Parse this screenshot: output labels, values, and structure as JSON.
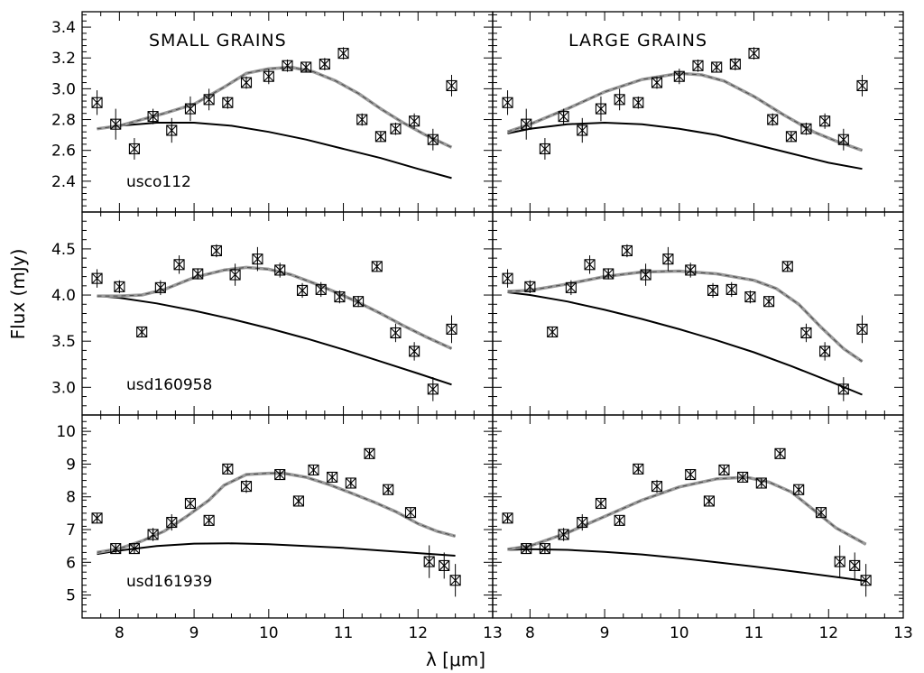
{
  "figure": {
    "ylabel": "Flux (mJy)",
    "xlabel": "λ [μm]",
    "column_titles": [
      "SMALL GRAINS",
      "LARGE GRAINS"
    ]
  },
  "chart_data": [
    {
      "type": "line",
      "panel": "small grains / usco112",
      "annotation": "SMALL GRAINS",
      "object": "usco112",
      "xlim": [
        7.5,
        13
      ],
      "ylim": [
        2.2,
        3.5
      ],
      "xticks": [
        8,
        9,
        10,
        11,
        12,
        13
      ],
      "yticks": [
        2.4,
        2.6,
        2.8,
        3.0,
        3.2,
        3.4
      ],
      "ytick_labels": [
        "2.4",
        "2.6",
        "2.8",
        "3.0",
        "3.2",
        "3.4"
      ],
      "points": {
        "x": [
          7.7,
          7.95,
          8.2,
          8.45,
          8.7,
          8.95,
          9.2,
          9.45,
          9.7,
          10.0,
          10.25,
          10.5,
          10.75,
          11.0,
          11.25,
          11.5,
          11.7,
          11.95,
          12.2,
          12.45
        ],
        "y": [
          2.91,
          2.77,
          2.61,
          2.82,
          2.73,
          2.87,
          2.93,
          2.91,
          3.04,
          3.08,
          3.15,
          3.14,
          3.16,
          3.23,
          2.8,
          2.69,
          2.74,
          2.79,
          2.67,
          3.02
        ],
        "yerr": [
          0.08,
          0.1,
          0.07,
          0.05,
          0.08,
          0.08,
          0.07,
          0.04,
          0.04,
          0.05,
          0.04,
          0.03,
          0.04,
          0.04,
          0.04,
          0.03,
          0.04,
          0.05,
          0.07,
          0.07
        ]
      },
      "series": [
        {
          "style": "continuum",
          "x": [
            7.7,
            8.0,
            8.5,
            9.0,
            9.5,
            10.0,
            10.5,
            11.0,
            11.5,
            12.0,
            12.45
          ],
          "y": [
            2.74,
            2.76,
            2.78,
            2.78,
            2.76,
            2.72,
            2.67,
            2.61,
            2.55,
            2.48,
            2.42
          ]
        },
        {
          "style": "model",
          "x": [
            7.7,
            8.0,
            8.3,
            8.6,
            9.0,
            9.4,
            9.7,
            10.0,
            10.3,
            10.6,
            10.9,
            11.2,
            11.5,
            11.8,
            12.1,
            12.45
          ],
          "y": [
            2.74,
            2.76,
            2.8,
            2.84,
            2.9,
            3.01,
            3.1,
            3.13,
            3.14,
            3.11,
            3.05,
            2.97,
            2.87,
            2.78,
            2.7,
            2.62
          ]
        }
      ]
    },
    {
      "type": "line",
      "panel": "large grains / usco112",
      "annotation": "LARGE GRAINS",
      "xlim": [
        7.5,
        13
      ],
      "ylim": [
        2.2,
        3.5
      ],
      "xticks": [
        8,
        9,
        10,
        11,
        12,
        13
      ],
      "yticks": [
        2.4,
        2.6,
        2.8,
        3.0,
        3.2,
        3.4
      ],
      "points": {
        "x": [
          7.7,
          7.95,
          8.2,
          8.45,
          8.7,
          8.95,
          9.2,
          9.45,
          9.7,
          10.0,
          10.25,
          10.5,
          10.75,
          11.0,
          11.25,
          11.5,
          11.7,
          11.95,
          12.2,
          12.45
        ],
        "y": [
          2.91,
          2.77,
          2.61,
          2.82,
          2.73,
          2.87,
          2.93,
          2.91,
          3.04,
          3.08,
          3.15,
          3.14,
          3.16,
          3.23,
          2.8,
          2.69,
          2.74,
          2.79,
          2.67,
          3.02
        ],
        "yerr": [
          0.08,
          0.1,
          0.07,
          0.05,
          0.08,
          0.08,
          0.07,
          0.04,
          0.04,
          0.05,
          0.04,
          0.03,
          0.04,
          0.04,
          0.04,
          0.03,
          0.04,
          0.05,
          0.07,
          0.07
        ]
      },
      "series": [
        {
          "style": "continuum",
          "x": [
            7.7,
            8.0,
            8.5,
            9.0,
            9.5,
            10.0,
            10.5,
            11.0,
            11.5,
            12.0,
            12.45
          ],
          "y": [
            2.71,
            2.74,
            2.77,
            2.78,
            2.77,
            2.74,
            2.7,
            2.64,
            2.58,
            2.52,
            2.48
          ]
        },
        {
          "style": "model",
          "x": [
            7.7,
            8.0,
            8.5,
            9.0,
            9.5,
            10.0,
            10.3,
            10.6,
            11.0,
            11.4,
            11.8,
            12.1,
            12.45
          ],
          "y": [
            2.72,
            2.77,
            2.87,
            2.98,
            3.06,
            3.1,
            3.09,
            3.05,
            2.95,
            2.83,
            2.72,
            2.66,
            2.6
          ]
        }
      ]
    },
    {
      "type": "line",
      "panel": "small grains / usd160958",
      "object": "usd160958",
      "xlim": [
        7.5,
        13
      ],
      "ylim": [
        2.7,
        4.9
      ],
      "xticks": [
        8,
        9,
        10,
        11,
        12,
        13
      ],
      "yticks": [
        3.0,
        3.5,
        4.0,
        4.5
      ],
      "ytick_labels": [
        "3.0",
        "3.5",
        "4.0",
        "4.5"
      ],
      "points": {
        "x": [
          7.7,
          8.0,
          8.3,
          8.55,
          8.8,
          9.05,
          9.3,
          9.55,
          9.85,
          10.15,
          10.45,
          10.7,
          10.95,
          11.2,
          11.45,
          11.7,
          11.95,
          12.2,
          12.45
        ],
        "y": [
          4.18,
          4.09,
          3.6,
          4.08,
          4.33,
          4.23,
          4.48,
          4.22,
          4.39,
          4.27,
          4.05,
          4.06,
          3.98,
          3.93,
          4.31,
          3.59,
          3.39,
          2.98,
          3.63
        ],
        "yerr": [
          0.1,
          0.07,
          0.05,
          0.08,
          0.1,
          0.06,
          0.07,
          0.12,
          0.13,
          0.08,
          0.08,
          0.08,
          0.07,
          0.06,
          0.05,
          0.1,
          0.1,
          0.13,
          0.15
        ]
      },
      "series": [
        {
          "style": "continuum",
          "x": [
            7.7,
            8.0,
            8.5,
            9.0,
            9.5,
            10.0,
            10.5,
            11.0,
            11.5,
            12.0,
            12.45
          ],
          "y": [
            3.99,
            3.97,
            3.91,
            3.83,
            3.74,
            3.64,
            3.53,
            3.41,
            3.28,
            3.15,
            3.03
          ]
        },
        {
          "style": "model",
          "x": [
            7.7,
            8.0,
            8.3,
            8.6,
            9.0,
            9.4,
            9.7,
            10.0,
            10.3,
            10.6,
            10.9,
            11.2,
            11.5,
            11.8,
            12.1,
            12.45
          ],
          "y": [
            3.99,
            3.99,
            4.0,
            4.06,
            4.19,
            4.27,
            4.3,
            4.28,
            4.22,
            4.13,
            4.03,
            3.92,
            3.8,
            3.67,
            3.55,
            3.42
          ]
        }
      ]
    },
    {
      "type": "line",
      "panel": "large grains / usd160958",
      "xlim": [
        7.5,
        13
      ],
      "ylim": [
        2.7,
        4.9
      ],
      "xticks": [
        8,
        9,
        10,
        11,
        12,
        13
      ],
      "yticks": [
        3.0,
        3.5,
        4.0,
        4.5
      ],
      "points": {
        "x": [
          7.7,
          8.0,
          8.3,
          8.55,
          8.8,
          9.05,
          9.3,
          9.55,
          9.85,
          10.15,
          10.45,
          10.7,
          10.95,
          11.2,
          11.45,
          11.7,
          11.95,
          12.2,
          12.45
        ],
        "y": [
          4.18,
          4.09,
          3.6,
          4.08,
          4.33,
          4.23,
          4.48,
          4.22,
          4.39,
          4.27,
          4.05,
          4.06,
          3.98,
          3.93,
          4.31,
          3.59,
          3.39,
          2.98,
          3.63
        ],
        "yerr": [
          0.1,
          0.07,
          0.05,
          0.08,
          0.1,
          0.06,
          0.07,
          0.12,
          0.13,
          0.08,
          0.08,
          0.08,
          0.07,
          0.06,
          0.05,
          0.1,
          0.1,
          0.13,
          0.15
        ]
      },
      "series": [
        {
          "style": "continuum",
          "x": [
            7.7,
            8.0,
            8.5,
            9.0,
            9.5,
            10.0,
            10.5,
            11.0,
            11.5,
            12.0,
            12.45
          ],
          "y": [
            4.03,
            4.0,
            3.93,
            3.84,
            3.74,
            3.63,
            3.51,
            3.38,
            3.23,
            3.07,
            2.92
          ]
        },
        {
          "style": "model",
          "x": [
            7.7,
            8.0,
            8.5,
            9.0,
            9.5,
            10.0,
            10.5,
            11.0,
            11.3,
            11.6,
            11.9,
            12.2,
            12.45
          ],
          "y": [
            4.04,
            4.05,
            4.12,
            4.2,
            4.25,
            4.26,
            4.23,
            4.16,
            4.07,
            3.9,
            3.65,
            3.42,
            3.28
          ]
        }
      ]
    },
    {
      "type": "line",
      "panel": "small grains / usd161939",
      "object": "usd161939",
      "xlim": [
        7.5,
        13
      ],
      "ylim": [
        4.3,
        10.5
      ],
      "xticks": [
        8,
        9,
        10,
        11,
        12,
        13
      ],
      "xtick_labels": [
        "8",
        "9",
        "10",
        "11",
        "12",
        "13"
      ],
      "yticks": [
        5,
        6,
        7,
        8,
        9,
        10
      ],
      "ytick_labels": [
        "5",
        "6",
        "7",
        "8",
        "9",
        "10"
      ],
      "points": {
        "x": [
          7.7,
          7.95,
          8.2,
          8.45,
          8.7,
          8.95,
          9.2,
          9.45,
          9.7,
          10.15,
          10.4,
          10.6,
          10.85,
          11.1,
          11.35,
          11.6,
          11.9,
          12.15,
          12.35,
          12.5
        ],
        "y": [
          7.35,
          6.42,
          6.42,
          6.85,
          7.22,
          7.8,
          7.28,
          8.85,
          8.32,
          8.68,
          7.87,
          8.82,
          8.6,
          8.42,
          9.32,
          8.22,
          7.52,
          6.02,
          5.9,
          5.45
        ],
        "yerr": [
          0.1,
          0.1,
          0.15,
          0.2,
          0.25,
          0.1,
          0.1,
          0.1,
          0.2,
          0.15,
          0.1,
          0.1,
          0.1,
          0.1,
          0.1,
          0.1,
          0.1,
          0.5,
          0.4,
          0.5
        ]
      },
      "series": [
        {
          "style": "continuum",
          "x": [
            7.7,
            8.0,
            8.5,
            9.0,
            9.5,
            10.0,
            10.5,
            11.0,
            11.5,
            12.0,
            12.5
          ],
          "y": [
            6.25,
            6.36,
            6.5,
            6.57,
            6.58,
            6.55,
            6.5,
            6.44,
            6.36,
            6.28,
            6.2
          ]
        },
        {
          "style": "model",
          "x": [
            7.7,
            8.0,
            8.3,
            8.6,
            8.9,
            9.2,
            9.4,
            9.7,
            10.0,
            10.2,
            10.5,
            10.8,
            11.1,
            11.4,
            11.7,
            12.0,
            12.25,
            12.5
          ],
          "y": [
            6.3,
            6.42,
            6.65,
            6.95,
            7.4,
            7.9,
            8.35,
            8.68,
            8.72,
            8.72,
            8.6,
            8.38,
            8.12,
            7.85,
            7.55,
            7.18,
            6.95,
            6.8
          ]
        }
      ]
    },
    {
      "type": "line",
      "panel": "large grains / usd161939",
      "xlim": [
        7.5,
        13
      ],
      "ylim": [
        4.3,
        10.5
      ],
      "xticks": [
        8,
        9,
        10,
        11,
        12,
        13
      ],
      "xtick_labels": [
        "8",
        "9",
        "10",
        "11",
        "12",
        "13"
      ],
      "yticks": [
        5,
        6,
        7,
        8,
        9,
        10
      ],
      "points": {
        "x": [
          7.7,
          7.95,
          8.2,
          8.45,
          8.7,
          8.95,
          9.2,
          9.45,
          9.7,
          10.15,
          10.4,
          10.6,
          10.85,
          11.1,
          11.35,
          11.6,
          11.9,
          12.15,
          12.35,
          12.5
        ],
        "y": [
          7.35,
          6.42,
          6.42,
          6.85,
          7.22,
          7.8,
          7.28,
          8.85,
          8.32,
          8.68,
          7.87,
          8.82,
          8.6,
          8.42,
          9.32,
          8.22,
          7.52,
          6.02,
          5.9,
          5.45
        ],
        "yerr": [
          0.1,
          0.1,
          0.15,
          0.2,
          0.25,
          0.1,
          0.1,
          0.1,
          0.2,
          0.15,
          0.1,
          0.1,
          0.1,
          0.1,
          0.1,
          0.1,
          0.1,
          0.5,
          0.4,
          0.5
        ]
      },
      "series": [
        {
          "style": "continuum",
          "x": [
            7.7,
            8.0,
            8.5,
            9.0,
            9.5,
            10.0,
            10.5,
            11.0,
            11.5,
            12.0,
            12.5
          ],
          "y": [
            6.38,
            6.4,
            6.38,
            6.32,
            6.24,
            6.13,
            6.0,
            5.87,
            5.73,
            5.58,
            5.43
          ]
        },
        {
          "style": "model",
          "x": [
            7.7,
            8.0,
            8.5,
            9.0,
            9.5,
            10.0,
            10.5,
            10.9,
            11.2,
            11.5,
            11.8,
            12.1,
            12.5
          ],
          "y": [
            6.4,
            6.5,
            6.9,
            7.4,
            7.9,
            8.3,
            8.55,
            8.6,
            8.45,
            8.15,
            7.6,
            7.05,
            6.55
          ]
        }
      ]
    }
  ]
}
